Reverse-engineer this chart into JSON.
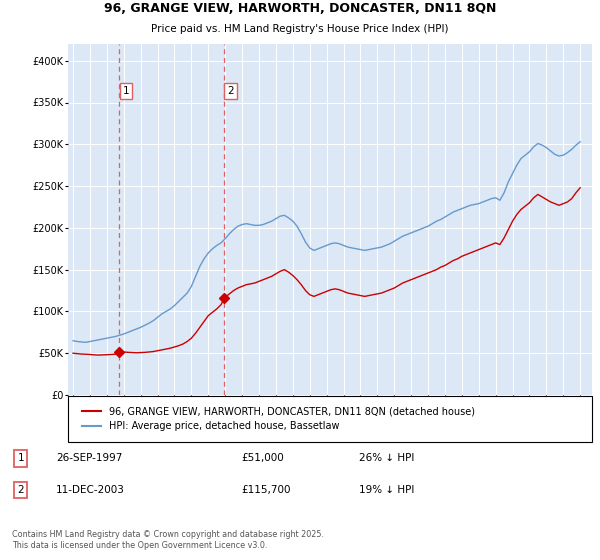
{
  "title_line1": "96, GRANGE VIEW, HARWORTH, DONCASTER, DN11 8QN",
  "title_line2": "Price paid vs. HM Land Registry's House Price Index (HPI)",
  "ylim": [
    0,
    420000
  ],
  "xlim_start": 1994.7,
  "xlim_end": 2025.7,
  "yticks": [
    0,
    50000,
    100000,
    150000,
    200000,
    250000,
    300000,
    350000,
    400000
  ],
  "ytick_labels": [
    "£0",
    "£50K",
    "£100K",
    "£150K",
    "£200K",
    "£250K",
    "£300K",
    "£350K",
    "£400K"
  ],
  "plot_bg_color": "#dce8f5",
  "red_line_color": "#cc0000",
  "blue_line_color": "#6699cc",
  "marker_color": "#cc0000",
  "dashed_line_color": "#e06060",
  "transaction1_date": 1997.74,
  "transaction1_price": 51000,
  "transaction1_label": "1",
  "transaction2_date": 2003.95,
  "transaction2_price": 115700,
  "transaction2_label": "2",
  "legend_line1": "96, GRANGE VIEW, HARWORTH, DONCASTER, DN11 8QN (detached house)",
  "legend_line2": "HPI: Average price, detached house, Bassetlaw",
  "table_row1": [
    "1",
    "26-SEP-1997",
    "£51,000",
    "26% ↓ HPI"
  ],
  "table_row2": [
    "2",
    "11-DEC-2003",
    "£115,700",
    "19% ↓ HPI"
  ],
  "footer": "Contains HM Land Registry data © Crown copyright and database right 2025.\nThis data is licensed under the Open Government Licence v3.0.",
  "hpi_data": [
    [
      1995.0,
      65000
    ],
    [
      1995.25,
      64000
    ],
    [
      1995.5,
      63500
    ],
    [
      1995.75,
      63000
    ],
    [
      1996.0,
      64000
    ],
    [
      1996.25,
      65000
    ],
    [
      1996.5,
      66000
    ],
    [
      1996.75,
      67000
    ],
    [
      1997.0,
      68000
    ],
    [
      1997.25,
      69000
    ],
    [
      1997.5,
      70000
    ],
    [
      1997.75,
      71500
    ],
    [
      1998.0,
      73000
    ],
    [
      1998.25,
      75000
    ],
    [
      1998.5,
      77000
    ],
    [
      1998.75,
      79000
    ],
    [
      1999.0,
      81000
    ],
    [
      1999.25,
      83500
    ],
    [
      1999.5,
      86000
    ],
    [
      1999.75,
      89000
    ],
    [
      2000.0,
      93000
    ],
    [
      2000.25,
      97000
    ],
    [
      2000.5,
      100000
    ],
    [
      2000.75,
      103000
    ],
    [
      2001.0,
      107000
    ],
    [
      2001.25,
      112000
    ],
    [
      2001.5,
      117000
    ],
    [
      2001.75,
      122000
    ],
    [
      2002.0,
      130000
    ],
    [
      2002.25,
      142000
    ],
    [
      2002.5,
      154000
    ],
    [
      2002.75,
      163000
    ],
    [
      2003.0,
      170000
    ],
    [
      2003.25,
      175000
    ],
    [
      2003.5,
      179000
    ],
    [
      2003.75,
      182000
    ],
    [
      2004.0,
      187000
    ],
    [
      2004.25,
      193000
    ],
    [
      2004.5,
      198000
    ],
    [
      2004.75,
      202000
    ],
    [
      2005.0,
      204000
    ],
    [
      2005.25,
      205000
    ],
    [
      2005.5,
      204000
    ],
    [
      2005.75,
      203000
    ],
    [
      2006.0,
      203000
    ],
    [
      2006.25,
      204000
    ],
    [
      2006.5,
      206000
    ],
    [
      2006.75,
      208000
    ],
    [
      2007.0,
      211000
    ],
    [
      2007.25,
      214000
    ],
    [
      2007.5,
      215000
    ],
    [
      2007.75,
      212000
    ],
    [
      2008.0,
      208000
    ],
    [
      2008.25,
      202000
    ],
    [
      2008.5,
      193000
    ],
    [
      2008.75,
      183000
    ],
    [
      2009.0,
      176000
    ],
    [
      2009.25,
      173000
    ],
    [
      2009.5,
      175000
    ],
    [
      2009.75,
      177000
    ],
    [
      2010.0,
      179000
    ],
    [
      2010.25,
      181000
    ],
    [
      2010.5,
      182000
    ],
    [
      2010.75,
      181000
    ],
    [
      2011.0,
      179000
    ],
    [
      2011.25,
      177000
    ],
    [
      2011.5,
      176000
    ],
    [
      2011.75,
      175000
    ],
    [
      2012.0,
      174000
    ],
    [
      2012.25,
      173000
    ],
    [
      2012.5,
      174000
    ],
    [
      2012.75,
      175000
    ],
    [
      2013.0,
      176000
    ],
    [
      2013.25,
      177000
    ],
    [
      2013.5,
      179000
    ],
    [
      2013.75,
      181000
    ],
    [
      2014.0,
      184000
    ],
    [
      2014.25,
      187000
    ],
    [
      2014.5,
      190000
    ],
    [
      2014.75,
      192000
    ],
    [
      2015.0,
      194000
    ],
    [
      2015.25,
      196000
    ],
    [
      2015.5,
      198000
    ],
    [
      2015.75,
      200000
    ],
    [
      2016.0,
      202000
    ],
    [
      2016.25,
      205000
    ],
    [
      2016.5,
      208000
    ],
    [
      2016.75,
      210000
    ],
    [
      2017.0,
      213000
    ],
    [
      2017.25,
      216000
    ],
    [
      2017.5,
      219000
    ],
    [
      2017.75,
      221000
    ],
    [
      2018.0,
      223000
    ],
    [
      2018.25,
      225000
    ],
    [
      2018.5,
      227000
    ],
    [
      2018.75,
      228000
    ],
    [
      2019.0,
      229000
    ],
    [
      2019.25,
      231000
    ],
    [
      2019.5,
      233000
    ],
    [
      2019.75,
      235000
    ],
    [
      2020.0,
      236000
    ],
    [
      2020.25,
      233000
    ],
    [
      2020.5,
      242000
    ],
    [
      2020.75,
      255000
    ],
    [
      2021.0,
      265000
    ],
    [
      2021.25,
      275000
    ],
    [
      2021.5,
      283000
    ],
    [
      2021.75,
      287000
    ],
    [
      2022.0,
      291000
    ],
    [
      2022.25,
      297000
    ],
    [
      2022.5,
      301000
    ],
    [
      2022.75,
      299000
    ],
    [
      2023.0,
      296000
    ],
    [
      2023.25,
      292000
    ],
    [
      2023.5,
      288000
    ],
    [
      2023.75,
      286000
    ],
    [
      2024.0,
      287000
    ],
    [
      2024.25,
      290000
    ],
    [
      2024.5,
      294000
    ],
    [
      2024.75,
      299000
    ],
    [
      2025.0,
      303000
    ]
  ],
  "red_data": [
    [
      1995.0,
      50000
    ],
    [
      1995.25,
      49500
    ],
    [
      1995.5,
      49000
    ],
    [
      1995.75,
      48800
    ],
    [
      1996.0,
      48500
    ],
    [
      1996.25,
      48000
    ],
    [
      1996.5,
      47800
    ],
    [
      1996.75,
      48000
    ],
    [
      1997.0,
      48200
    ],
    [
      1997.25,
      48500
    ],
    [
      1997.5,
      48800
    ],
    [
      1997.74,
      51000
    ],
    [
      1997.75,
      51000
    ],
    [
      1998.0,
      51500
    ],
    [
      1998.25,
      51000
    ],
    [
      1998.5,
      50800
    ],
    [
      1998.75,
      50500
    ],
    [
      1999.0,
      50800
    ],
    [
      1999.25,
      51000
    ],
    [
      1999.5,
      51500
    ],
    [
      1999.75,
      52000
    ],
    [
      2000.0,
      53000
    ],
    [
      2000.25,
      54000
    ],
    [
      2000.5,
      55000
    ],
    [
      2000.75,
      56000
    ],
    [
      2001.0,
      57500
    ],
    [
      2001.25,
      59000
    ],
    [
      2001.5,
      61000
    ],
    [
      2001.75,
      64000
    ],
    [
      2002.0,
      68000
    ],
    [
      2002.25,
      74000
    ],
    [
      2002.5,
      81000
    ],
    [
      2002.75,
      88000
    ],
    [
      2003.0,
      95000
    ],
    [
      2003.25,
      99000
    ],
    [
      2003.5,
      103000
    ],
    [
      2003.75,
      108000
    ],
    [
      2003.95,
      115700
    ],
    [
      2004.0,
      117000
    ],
    [
      2004.25,
      121000
    ],
    [
      2004.5,
      125000
    ],
    [
      2004.75,
      128000
    ],
    [
      2005.0,
      130000
    ],
    [
      2005.25,
      132000
    ],
    [
      2005.5,
      133000
    ],
    [
      2005.75,
      134000
    ],
    [
      2006.0,
      136000
    ],
    [
      2006.25,
      138000
    ],
    [
      2006.5,
      140000
    ],
    [
      2006.75,
      142000
    ],
    [
      2007.0,
      145000
    ],
    [
      2007.25,
      148000
    ],
    [
      2007.5,
      150000
    ],
    [
      2007.75,
      147000
    ],
    [
      2008.0,
      143000
    ],
    [
      2008.25,
      138000
    ],
    [
      2008.5,
      132000
    ],
    [
      2008.75,
      125000
    ],
    [
      2009.0,
      120000
    ],
    [
      2009.25,
      118000
    ],
    [
      2009.5,
      120000
    ],
    [
      2009.75,
      122000
    ],
    [
      2010.0,
      124000
    ],
    [
      2010.25,
      126000
    ],
    [
      2010.5,
      127000
    ],
    [
      2010.75,
      126000
    ],
    [
      2011.0,
      124000
    ],
    [
      2011.25,
      122000
    ],
    [
      2011.5,
      121000
    ],
    [
      2011.75,
      120000
    ],
    [
      2012.0,
      119000
    ],
    [
      2012.25,
      118000
    ],
    [
      2012.5,
      119000
    ],
    [
      2012.75,
      120000
    ],
    [
      2013.0,
      121000
    ],
    [
      2013.25,
      122000
    ],
    [
      2013.5,
      124000
    ],
    [
      2013.75,
      126000
    ],
    [
      2014.0,
      128000
    ],
    [
      2014.25,
      131000
    ],
    [
      2014.5,
      134000
    ],
    [
      2014.75,
      136000
    ],
    [
      2015.0,
      138000
    ],
    [
      2015.25,
      140000
    ],
    [
      2015.5,
      142000
    ],
    [
      2015.75,
      144000
    ],
    [
      2016.0,
      146000
    ],
    [
      2016.25,
      148000
    ],
    [
      2016.5,
      150000
    ],
    [
      2016.75,
      153000
    ],
    [
      2017.0,
      155000
    ],
    [
      2017.25,
      158000
    ],
    [
      2017.5,
      161000
    ],
    [
      2017.75,
      163000
    ],
    [
      2018.0,
      166000
    ],
    [
      2018.25,
      168000
    ],
    [
      2018.5,
      170000
    ],
    [
      2018.75,
      172000
    ],
    [
      2019.0,
      174000
    ],
    [
      2019.25,
      176000
    ],
    [
      2019.5,
      178000
    ],
    [
      2019.75,
      180000
    ],
    [
      2020.0,
      182000
    ],
    [
      2020.25,
      180000
    ],
    [
      2020.5,
      188000
    ],
    [
      2020.75,
      198000
    ],
    [
      2021.0,
      208000
    ],
    [
      2021.25,
      216000
    ],
    [
      2021.5,
      222000
    ],
    [
      2021.75,
      226000
    ],
    [
      2022.0,
      230000
    ],
    [
      2022.25,
      236000
    ],
    [
      2022.5,
      240000
    ],
    [
      2022.75,
      237000
    ],
    [
      2023.0,
      234000
    ],
    [
      2023.25,
      231000
    ],
    [
      2023.5,
      229000
    ],
    [
      2023.75,
      227000
    ],
    [
      2024.0,
      229000
    ],
    [
      2024.25,
      231000
    ],
    [
      2024.5,
      235000
    ],
    [
      2024.75,
      242000
    ],
    [
      2025.0,
      248000
    ]
  ]
}
